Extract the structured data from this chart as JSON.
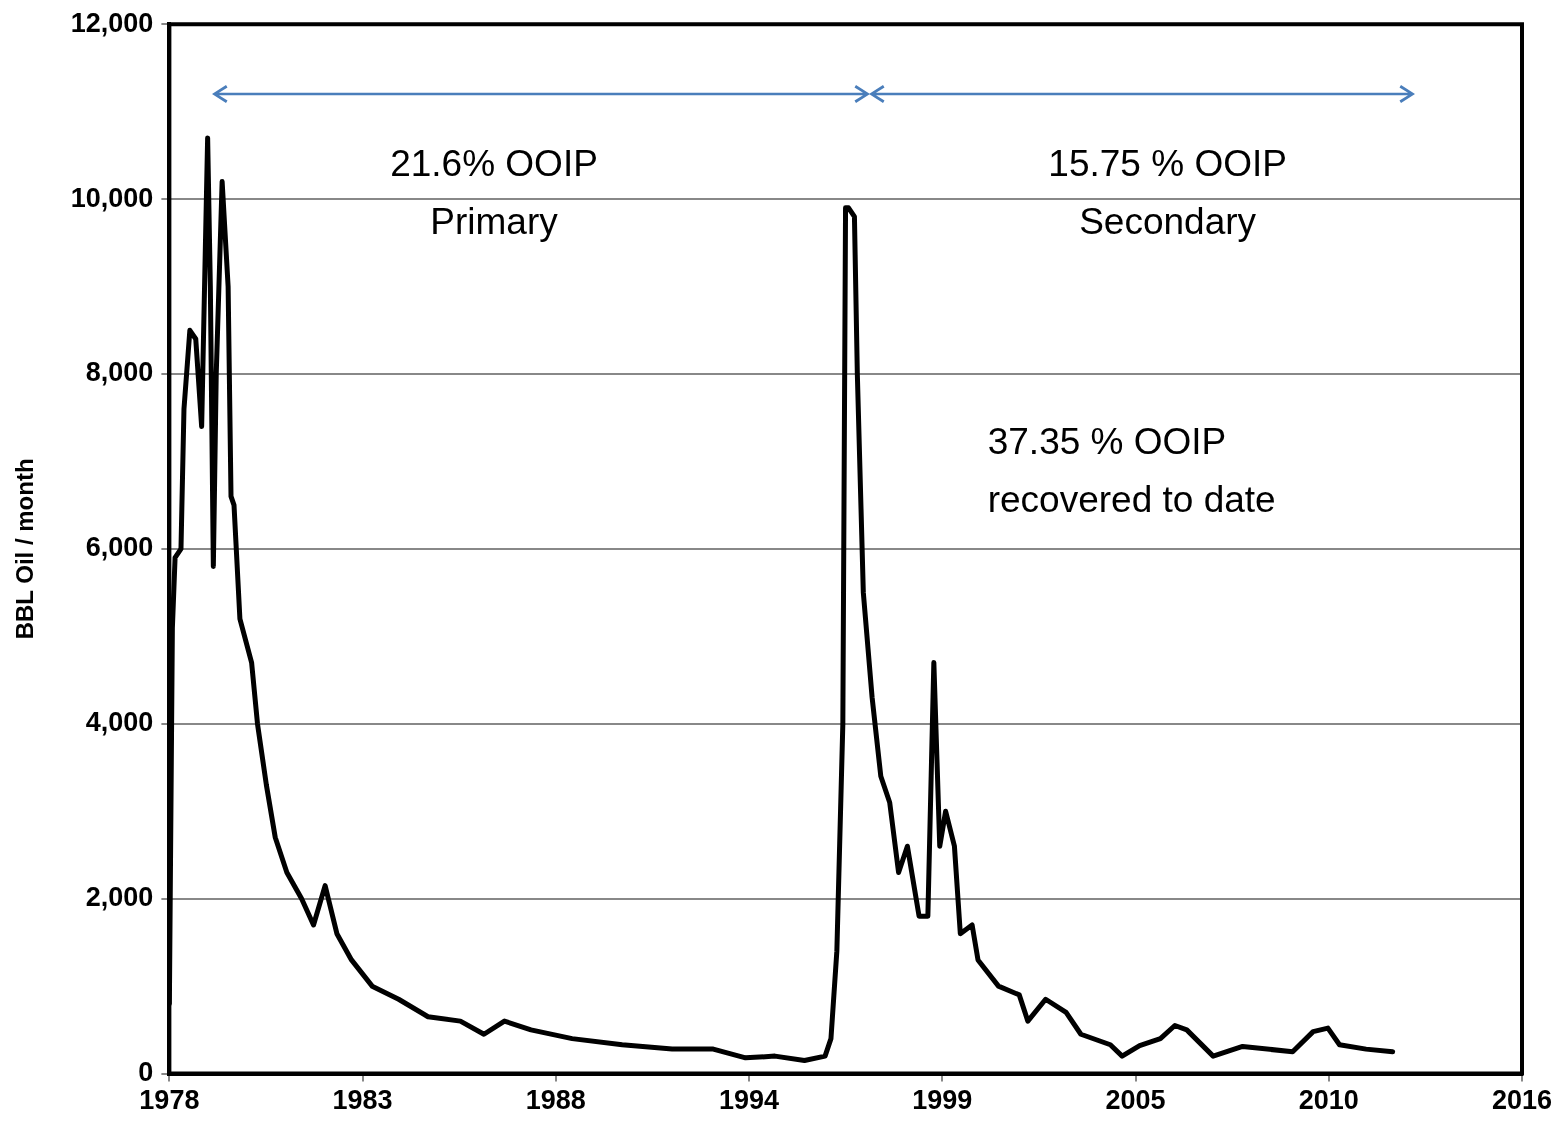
{
  "chart_data": {
    "type": "line",
    "ylabel": "BBL Oil / month",
    "x": [
      "1978-01",
      "1978-02",
      "1978-03",
      "1978-05",
      "1978-06",
      "1978-08",
      "1978-10",
      "1978-12",
      "1979-02",
      "1979-03",
      "1979-04",
      "1979-05",
      "1979-07",
      "1979-09",
      "1979-10",
      "1979-11",
      "1980-01",
      "1980-05",
      "1980-07",
      "1980-10",
      "1981-01",
      "1981-05",
      "1981-10",
      "1982-02",
      "1982-06",
      "1982-10",
      "1983-03",
      "1983-10",
      "1984-07",
      "1985-05",
      "1986-04",
      "1986-12",
      "1987-07",
      "1988-04",
      "1989-06",
      "1990-11",
      "1992-04",
      "1993-06",
      "1994-05",
      "1995-03",
      "1996-01",
      "1996-08",
      "1996-10",
      "1996-12",
      "1997-02",
      "1997-03",
      "1997-04",
      "1997-06",
      "1997-07",
      "1997-09",
      "1997-12",
      "1998-03",
      "1998-06",
      "1998-09",
      "1998-12",
      "1999-04",
      "1999-07",
      "1999-09",
      "1999-11",
      "2000-01",
      "2000-04",
      "2000-06",
      "2000-10",
      "2000-12",
      "2001-07",
      "2002-02",
      "2002-05",
      "2002-11",
      "2003-06",
      "2003-11",
      "2004-09",
      "2005-01",
      "2005-07",
      "2006-02",
      "2006-07",
      "2006-11",
      "2007-08",
      "2008-06",
      "2009-11",
      "2010-06",
      "2010-11",
      "2011-03",
      "2011-12",
      "2012-09"
    ],
    "series": [
      {
        "color": "#000000",
        "values": [
          800,
          5100,
          5900,
          6000,
          7600,
          8500,
          8400,
          7400,
          10700,
          9000,
          5800,
          8000,
          10200,
          9000,
          6600,
          6500,
          5200,
          4700,
          4000,
          3300,
          2700,
          2300,
          2000,
          1700,
          2150,
          1600,
          1300,
          1000,
          850,
          650,
          600,
          450,
          600,
          500,
          400,
          330,
          280,
          280,
          180,
          200,
          150,
          200,
          400,
          1400,
          4000,
          9900,
          9900,
          9800,
          8000,
          5500,
          4300,
          3400,
          3100,
          2300,
          2600,
          1800,
          1800,
          4700,
          2600,
          3000,
          2600,
          1600,
          1700,
          1300,
          1000,
          900,
          600,
          850,
          700,
          450,
          330,
          200,
          320,
          400,
          550,
          500,
          200,
          310,
          250,
          480,
          520,
          330,
          280,
          250
        ]
      }
    ],
    "xlim": [
      "1978-01-01",
      "2016-05-02"
    ],
    "xticks": [
      {
        "value": "1978-01-01",
        "label": "1978"
      },
      {
        "value": "1983-06-24",
        "label": "1983"
      },
      {
        "value": "1988-12-14",
        "label": "1988"
      },
      {
        "value": "1994-06-06",
        "label": "1994"
      },
      {
        "value": "1999-11-27",
        "label": "1999"
      },
      {
        "value": "2005-05-20",
        "label": "2005"
      },
      {
        "value": "2010-11-10",
        "label": "2010"
      },
      {
        "value": "2016-05-02",
        "label": "2016"
      }
    ],
    "ylim": [
      0,
      12000
    ],
    "yticks": [
      {
        "value": 0,
        "label": "0"
      },
      {
        "value": 2000,
        "label": "2,000"
      },
      {
        "value": 4000,
        "label": "4,000"
      },
      {
        "value": 6000,
        "label": "6,000"
      },
      {
        "value": 8000,
        "label": "8,000"
      },
      {
        "value": 10000,
        "label": "10,000"
      },
      {
        "value": 12000,
        "label": "12,000"
      }
    ],
    "grid": "y",
    "legend": false,
    "marker": "none",
    "line_style": "solid",
    "annotations": [
      "21.6% OOIP\nPrimary",
      "15.75 % OOIP\nSecondary",
      "37.35 % OOIP\nrecovered to date"
    ]
  }
}
